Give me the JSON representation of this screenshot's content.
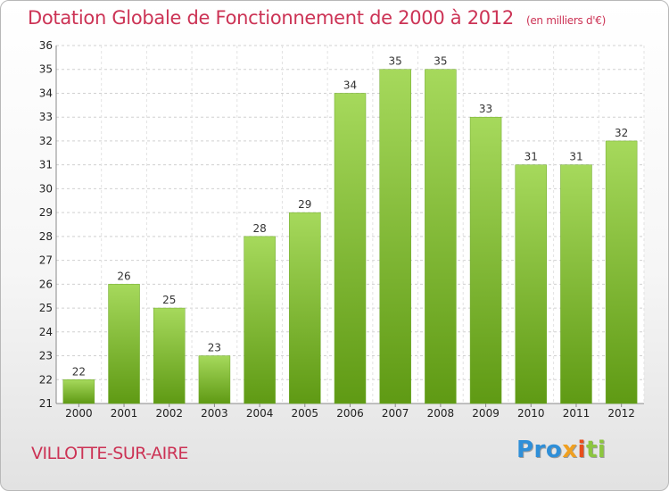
{
  "title": "Dotation Globale de Fonctionnement de 2000 à 2012",
  "subtitle": "(en milliers d'€)",
  "commune": "VILLOTTE-SUR-AIRE",
  "logo": {
    "p1": "Pro",
    "p2": "x",
    "p3": "i",
    "p4": "ti"
  },
  "colors": {
    "bar_light": "#a6d95c",
    "bar_dark": "#5f9a14",
    "title": "#cc3355"
  },
  "chart_data": {
    "type": "bar",
    "categories": [
      "2000",
      "2001",
      "2002",
      "2003",
      "2004",
      "2005",
      "2006",
      "2007",
      "2008",
      "2009",
      "2010",
      "2011",
      "2012"
    ],
    "values": [
      22,
      26,
      25,
      23,
      28,
      29,
      34,
      35,
      35,
      33,
      31,
      31,
      32
    ],
    "data_labels": [
      "22",
      "26",
      "25",
      "23",
      "28",
      "29",
      "34",
      "35",
      "35",
      "33",
      "31",
      "31",
      "32"
    ],
    "yticks": [
      "21",
      "22",
      "23",
      "24",
      "25",
      "26",
      "27",
      "28",
      "29",
      "30",
      "31",
      "32",
      "33",
      "34",
      "35",
      "36"
    ],
    "ylim": [
      21,
      36
    ],
    "grid": true,
    "legend": "none"
  }
}
